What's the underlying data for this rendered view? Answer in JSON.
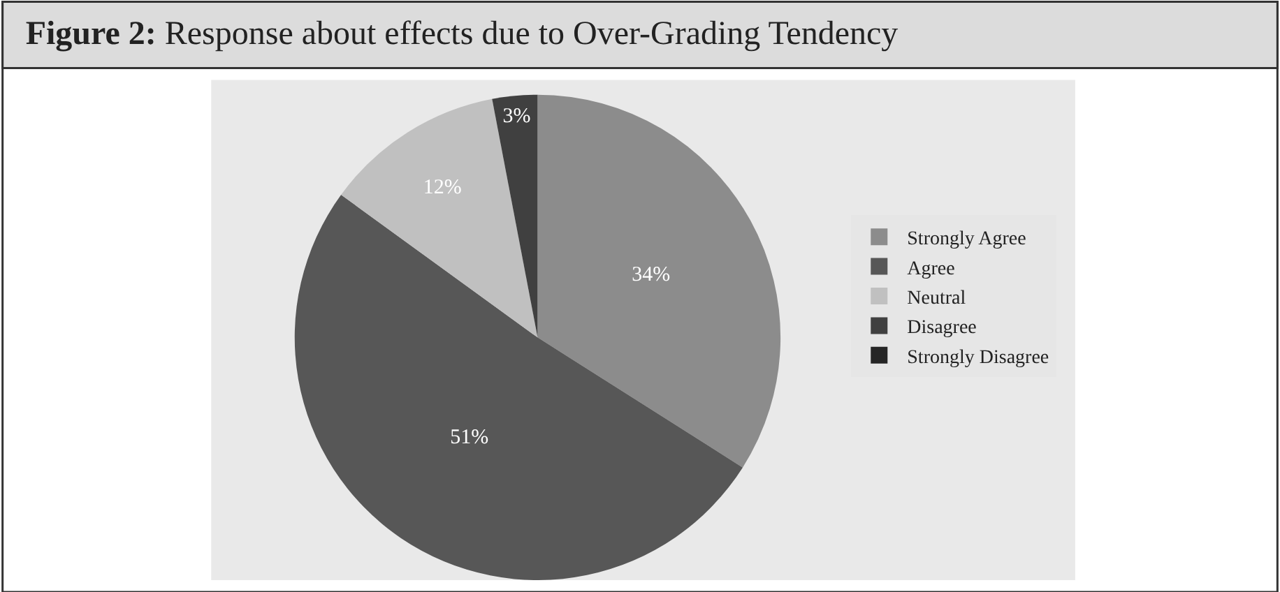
{
  "chart_data": {
    "type": "pie",
    "title": "Figure 2: Response about effects due to Over-Grading Tendency",
    "categories": [
      "Strongly Agree",
      "Agree",
      "Neutral",
      "Disagree",
      "Strongly Disagree"
    ],
    "values": [
      34,
      51,
      12,
      3,
      0
    ],
    "colors": [
      "#8c8c8c",
      "#575757",
      "#c0c0c0",
      "#404040",
      "#262626"
    ],
    "value_labels": [
      "34%",
      "51%",
      "12%",
      "3%",
      null
    ],
    "legend": "right"
  }
}
